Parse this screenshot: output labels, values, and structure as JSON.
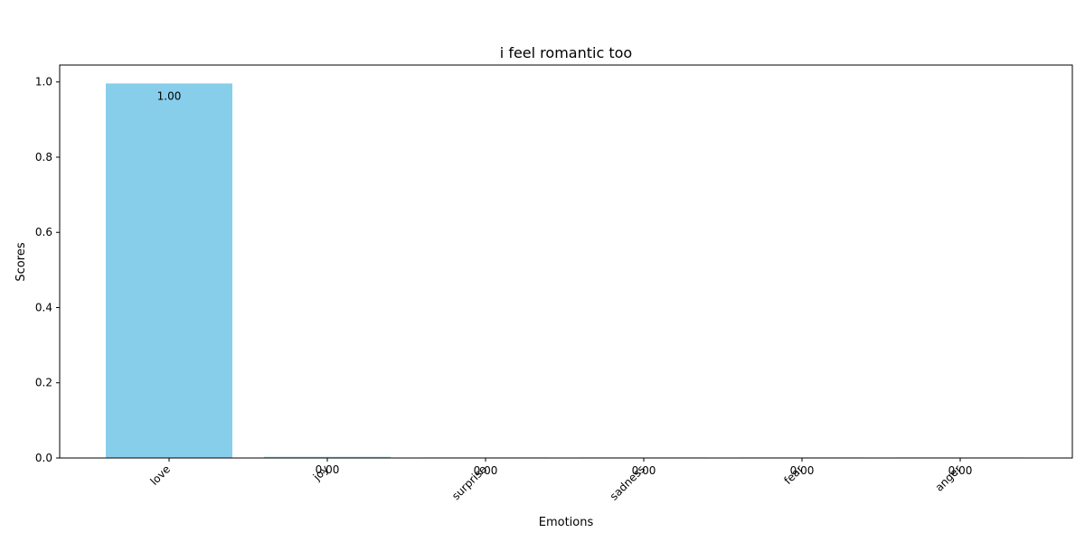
{
  "chart_data": {
    "type": "bar",
    "title": "i feel romantic too",
    "xlabel": "Emotions",
    "ylabel": "Scores",
    "categories": [
      "love",
      "joy",
      "surprise",
      "sadness",
      "fear",
      "anger"
    ],
    "values": [
      0.996,
      0.003,
      0.0003,
      0.0002,
      0.0001,
      0.0001
    ],
    "value_labels": [
      "1.00",
      "0.00",
      "0.00",
      "0.00",
      "0.00",
      "0.00"
    ],
    "ylim": [
      0,
      1.045
    ],
    "yticks": [
      0.0,
      0.2,
      0.4,
      0.6,
      0.8,
      1.0
    ],
    "ytick_labels": [
      "0.0",
      "0.2",
      "0.4",
      "0.6",
      "0.8",
      "1.0"
    ],
    "bar_color": "#87ceeb",
    "grid": false,
    "legend": "none"
  }
}
